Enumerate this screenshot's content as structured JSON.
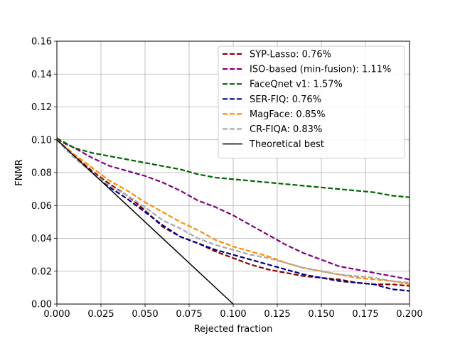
{
  "chart_data": {
    "type": "line",
    "title": "",
    "xlabel": "Rejected fraction",
    "ylabel": "FNMR",
    "xlim": [
      0.0,
      0.2
    ],
    "ylim": [
      0.0,
      0.16
    ],
    "x_ticks": [
      "0.000",
      "0.025",
      "0.050",
      "0.075",
      "0.100",
      "0.125",
      "0.150",
      "0.175",
      "0.200"
    ],
    "y_ticks": [
      "0.00",
      "0.02",
      "0.04",
      "0.06",
      "0.08",
      "0.10",
      "0.12",
      "0.14",
      "0.16"
    ],
    "grid": true,
    "legend_position": "top-right",
    "series": [
      {
        "name": "SYP-Lasso: 0.76%",
        "color": "#8b0000",
        "style": "dashed",
        "points": [
          [
            0,
            0.1
          ],
          [
            0.01,
            0.09
          ],
          [
            0.02,
            0.081
          ],
          [
            0.03,
            0.073
          ],
          [
            0.04,
            0.066
          ],
          [
            0.05,
            0.057
          ],
          [
            0.06,
            0.047
          ],
          [
            0.07,
            0.041
          ],
          [
            0.08,
            0.037
          ],
          [
            0.09,
            0.032
          ],
          [
            0.1,
            0.028
          ],
          [
            0.11,
            0.024
          ],
          [
            0.12,
            0.021
          ],
          [
            0.13,
            0.019
          ],
          [
            0.14,
            0.017
          ],
          [
            0.15,
            0.016
          ],
          [
            0.16,
            0.015
          ],
          [
            0.17,
            0.013
          ],
          [
            0.18,
            0.012
          ],
          [
            0.19,
            0.012
          ],
          [
            0.2,
            0.011
          ]
        ]
      },
      {
        "name": "ISO-based (min-fusion): 1.11%",
        "color": "#800080",
        "style": "dashed",
        "points": [
          [
            0,
            0.1
          ],
          [
            0.01,
            0.095
          ],
          [
            0.02,
            0.089
          ],
          [
            0.03,
            0.084
          ],
          [
            0.04,
            0.081
          ],
          [
            0.05,
            0.078
          ],
          [
            0.06,
            0.074
          ],
          [
            0.07,
            0.069
          ],
          [
            0.08,
            0.063
          ],
          [
            0.09,
            0.059
          ],
          [
            0.1,
            0.054
          ],
          [
            0.11,
            0.048
          ],
          [
            0.12,
            0.042
          ],
          [
            0.13,
            0.036
          ],
          [
            0.14,
            0.031
          ],
          [
            0.15,
            0.027
          ],
          [
            0.16,
            0.023
          ],
          [
            0.17,
            0.021
          ],
          [
            0.18,
            0.019
          ],
          [
            0.19,
            0.017
          ],
          [
            0.2,
            0.015
          ]
        ]
      },
      {
        "name": "FaceQnet v1: 1.57%",
        "color": "#006400",
        "style": "dashed",
        "points": [
          [
            0,
            0.101
          ],
          [
            0.01,
            0.095
          ],
          [
            0.02,
            0.092
          ],
          [
            0.03,
            0.09
          ],
          [
            0.04,
            0.088
          ],
          [
            0.05,
            0.086
          ],
          [
            0.06,
            0.084
          ],
          [
            0.07,
            0.082
          ],
          [
            0.08,
            0.079
          ],
          [
            0.09,
            0.077
          ],
          [
            0.1,
            0.076
          ],
          [
            0.11,
            0.075
          ],
          [
            0.12,
            0.074
          ],
          [
            0.13,
            0.073
          ],
          [
            0.14,
            0.072
          ],
          [
            0.15,
            0.071
          ],
          [
            0.16,
            0.07
          ],
          [
            0.17,
            0.069
          ],
          [
            0.18,
            0.068
          ],
          [
            0.19,
            0.066
          ],
          [
            0.2,
            0.065
          ]
        ]
      },
      {
        "name": "SER-FIQ: 0.76%",
        "color": "#00008b",
        "style": "dashed",
        "points": [
          [
            0,
            0.1
          ],
          [
            0.01,
            0.089
          ],
          [
            0.02,
            0.08
          ],
          [
            0.03,
            0.071
          ],
          [
            0.04,
            0.064
          ],
          [
            0.05,
            0.056
          ],
          [
            0.06,
            0.048
          ],
          [
            0.07,
            0.041
          ],
          [
            0.08,
            0.037
          ],
          [
            0.09,
            0.033
          ],
          [
            0.1,
            0.03
          ],
          [
            0.11,
            0.027
          ],
          [
            0.12,
            0.024
          ],
          [
            0.13,
            0.021
          ],
          [
            0.14,
            0.018
          ],
          [
            0.15,
            0.016
          ],
          [
            0.16,
            0.014
          ],
          [
            0.17,
            0.013
          ],
          [
            0.18,
            0.012
          ],
          [
            0.19,
            0.009
          ],
          [
            0.2,
            0.008
          ]
        ]
      },
      {
        "name": "MagFace: 0.85%",
        "color": "#ff8c00",
        "style": "dashed",
        "points": [
          [
            0,
            0.1
          ],
          [
            0.01,
            0.091
          ],
          [
            0.02,
            0.083
          ],
          [
            0.03,
            0.075
          ],
          [
            0.04,
            0.069
          ],
          [
            0.05,
            0.062
          ],
          [
            0.06,
            0.056
          ],
          [
            0.07,
            0.05
          ],
          [
            0.08,
            0.045
          ],
          [
            0.09,
            0.039
          ],
          [
            0.1,
            0.035
          ],
          [
            0.11,
            0.032
          ],
          [
            0.12,
            0.029
          ],
          [
            0.13,
            0.025
          ],
          [
            0.14,
            0.022
          ],
          [
            0.15,
            0.02
          ],
          [
            0.16,
            0.018
          ],
          [
            0.17,
            0.016
          ],
          [
            0.18,
            0.015
          ],
          [
            0.19,
            0.014
          ],
          [
            0.2,
            0.012
          ]
        ]
      },
      {
        "name": "CR-FIQA: 0.83%",
        "color": "#a9a9a9",
        "style": "dashed",
        "points": [
          [
            0,
            0.1
          ],
          [
            0.01,
            0.089
          ],
          [
            0.02,
            0.08
          ],
          [
            0.03,
            0.072
          ],
          [
            0.04,
            0.066
          ],
          [
            0.05,
            0.059
          ],
          [
            0.06,
            0.051
          ],
          [
            0.07,
            0.046
          ],
          [
            0.08,
            0.04
          ],
          [
            0.09,
            0.036
          ],
          [
            0.1,
            0.033
          ],
          [
            0.11,
            0.03
          ],
          [
            0.12,
            0.028
          ],
          [
            0.13,
            0.025
          ],
          [
            0.14,
            0.022
          ],
          [
            0.15,
            0.02
          ],
          [
            0.16,
            0.018
          ],
          [
            0.17,
            0.017
          ],
          [
            0.18,
            0.016
          ],
          [
            0.19,
            0.014
          ],
          [
            0.2,
            0.013
          ]
        ]
      },
      {
        "name": "Theoretical best",
        "color": "#000000",
        "style": "solid",
        "points": [
          [
            0,
            0.1
          ],
          [
            0.1,
            0.0
          ]
        ]
      }
    ]
  }
}
